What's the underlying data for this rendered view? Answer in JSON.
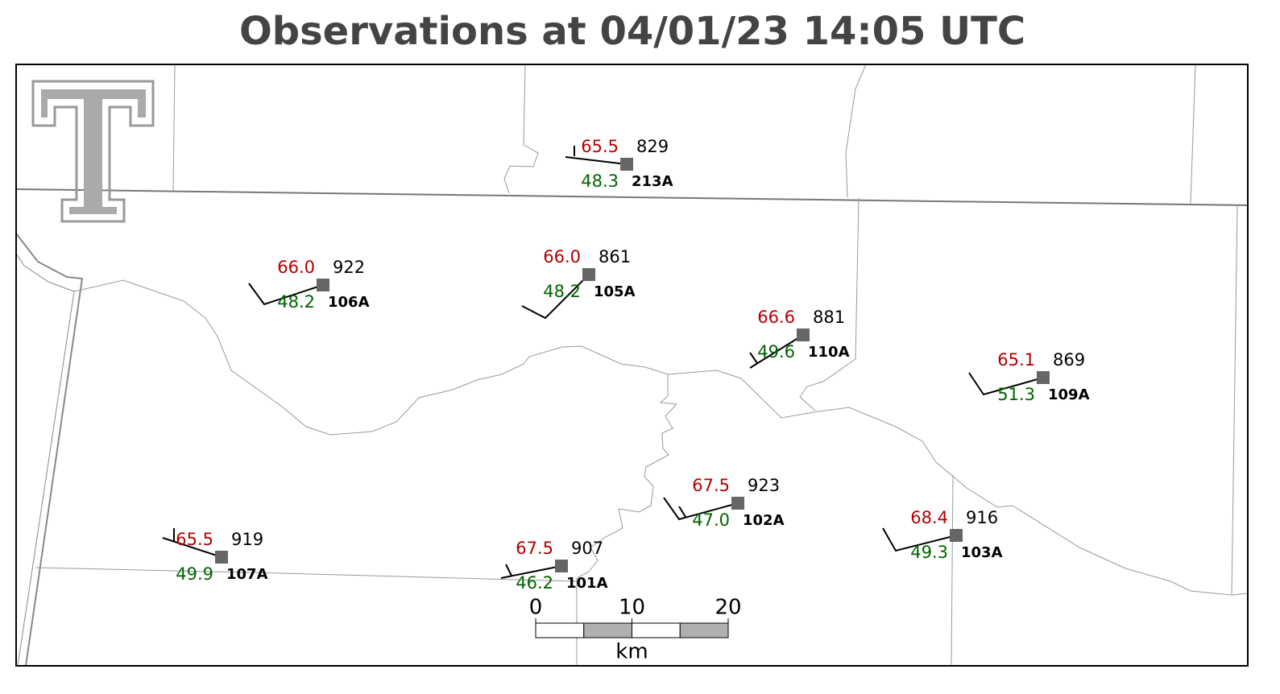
{
  "title": "Observations at 04/01/23 14:05 UTC",
  "stations": [
    {
      "id": "213A",
      "temperature": "65.5",
      "dewpoint": "48.3",
      "pressure": "829"
    },
    {
      "id": "106A",
      "temperature": "66.0",
      "dewpoint": "48.2",
      "pressure": "922"
    },
    {
      "id": "105A",
      "temperature": "66.0",
      "dewpoint": "48.2",
      "pressure": "861"
    },
    {
      "id": "110A",
      "temperature": "66.6",
      "dewpoint": "49.6",
      "pressure": "881"
    },
    {
      "id": "109A",
      "temperature": "65.1",
      "dewpoint": "51.3",
      "pressure": "869"
    },
    {
      "id": "107A",
      "temperature": "65.5",
      "dewpoint": "49.9",
      "pressure": "919"
    },
    {
      "id": "101A",
      "temperature": "67.5",
      "dewpoint": "46.2",
      "pressure": "907"
    },
    {
      "id": "102A",
      "temperature": "67.5",
      "dewpoint": "47.0",
      "pressure": "923"
    },
    {
      "id": "103A",
      "temperature": "68.4",
      "dewpoint": "49.3",
      "pressure": "916"
    }
  ],
  "scale_bar": {
    "ticks": [
      0,
      10,
      20
    ],
    "unit": "km"
  }
}
